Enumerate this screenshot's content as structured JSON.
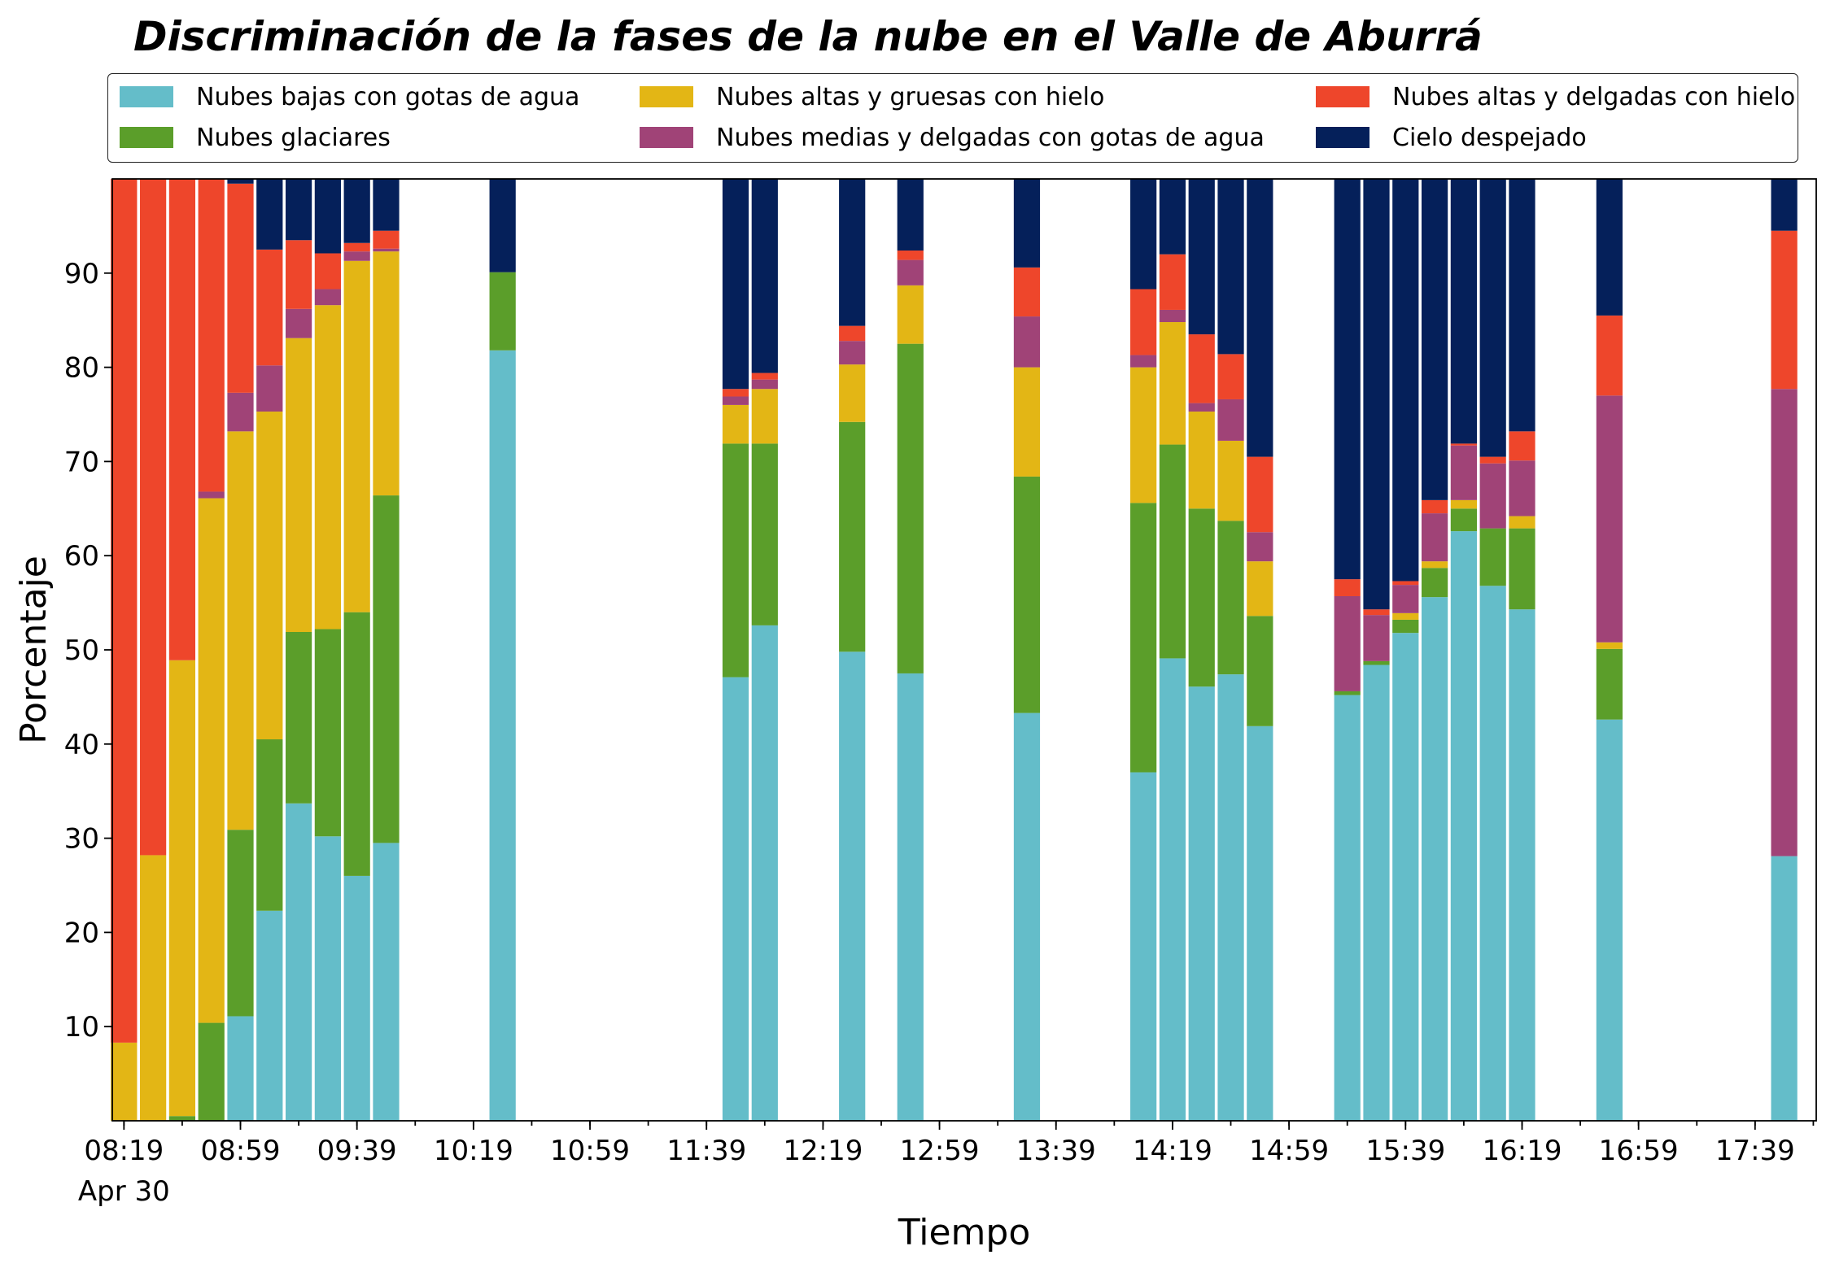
{
  "chart_data": {
    "type": "bar",
    "stacked": true,
    "title": "Discriminación de la fases de la nube en el Valle de Aburrá",
    "xlabel": "Tiempo",
    "ylabel": "Porcentaje",
    "ylim": [
      0,
      100
    ],
    "yticks": [
      10,
      20,
      30,
      40,
      50,
      60,
      70,
      80,
      90
    ],
    "xlim": [
      "08:15",
      "18:00"
    ],
    "x_major_ticks": [
      "08:19",
      "08:59",
      "09:39",
      "10:19",
      "10:59",
      "11:39",
      "12:19",
      "12:59",
      "13:39",
      "14:19",
      "14:59",
      "15:39",
      "16:19",
      "16:59",
      "17:39"
    ],
    "x_minor_tick_step_minutes": 20,
    "x_date_label": "Apr 30",
    "bar_width_minutes": 9,
    "grid": false,
    "legend": "top",
    "x": [
      "08:19",
      "08:29",
      "08:39",
      "08:49",
      "08:59",
      "09:09",
      "09:19",
      "09:29",
      "09:39",
      "09:49",
      "10:29",
      "11:49",
      "11:59",
      "12:29",
      "12:49",
      "13:29",
      "14:09",
      "14:19",
      "14:29",
      "14:39",
      "14:49",
      "15:19",
      "15:29",
      "15:39",
      "15:49",
      "15:59",
      "16:09",
      "16:19",
      "16:49",
      "17:49"
    ],
    "series": [
      {
        "name": "Nubes bajas con gotas de agua",
        "color": "#64bdc9",
        "values": [
          0,
          0,
          0,
          0,
          11.1,
          22.3,
          33.7,
          30.2,
          26.0,
          29.5,
          81.8,
          47.1,
          52.6,
          49.8,
          47.5,
          43.3,
          37.0,
          49.1,
          46.1,
          47.4,
          41.9,
          45.2,
          48.4,
          51.8,
          55.6,
          62.6,
          56.8,
          54.3,
          42.6,
          28.1
        ]
      },
      {
        "name": "Nubes glaciares",
        "color": "#5b9e2a",
        "values": [
          0,
          0,
          0.5,
          10.4,
          19.8,
          18.2,
          18.2,
          22.0,
          28.0,
          36.9,
          8.3,
          24.8,
          19.3,
          24.4,
          35.0,
          25.1,
          28.6,
          22.7,
          18.9,
          16.3,
          11.7,
          0.4,
          0.4,
          1.4,
          3.1,
          2.4,
          6.1,
          8.6,
          7.5,
          0
        ]
      },
      {
        "name": "Nubes altas y gruesas con hielo",
        "color": "#e3b615",
        "values": [
          8.3,
          28.2,
          48.4,
          55.7,
          42.3,
          34.8,
          31.2,
          34.4,
          37.3,
          25.9,
          0,
          4.1,
          5.8,
          6.1,
          6.2,
          11.6,
          14.4,
          13.0,
          10.3,
          8.5,
          5.8,
          0,
          0,
          0.7,
          0.7,
          0.9,
          0,
          1.3,
          0.7,
          0
        ]
      },
      {
        "name": "Nubes medias y delgadas con gotas de agua",
        "color": "#a04377",
        "values": [
          0,
          0,
          0,
          0.7,
          4.1,
          4.9,
          3.1,
          1.7,
          1.0,
          0.3,
          0,
          0.9,
          1.0,
          2.5,
          2.7,
          5.4,
          1.3,
          1.3,
          0.9,
          4.4,
          3.1,
          10.1,
          4.9,
          3.0,
          5.1,
          5.8,
          6.9,
          5.9,
          26.2,
          49.6
        ]
      },
      {
        "name": "Nubes altas y delgadas con hielo",
        "color": "#ee462b",
        "values": [
          91.7,
          71.8,
          51.1,
          33.2,
          22.2,
          12.3,
          7.3,
          3.8,
          0.9,
          1.9,
          0,
          0.8,
          0.7,
          1.6,
          1.0,
          5.2,
          7.0,
          5.9,
          7.3,
          4.8,
          8.0,
          1.8,
          0.6,
          0.4,
          1.4,
          0.2,
          0.7,
          3.1,
          8.5,
          16.8
        ]
      },
      {
        "name": "Cielo despejado",
        "color": "#05205a",
        "values": [
          0,
          0,
          0,
          0,
          0.5,
          7.5,
          6.5,
          7.9,
          6.8,
          5.5,
          9.9,
          22.3,
          20.6,
          15.6,
          7.6,
          9.4,
          11.7,
          8.0,
          16.5,
          18.6,
          29.5,
          42.5,
          45.7,
          42.7,
          34.1,
          28.1,
          29.5,
          26.8,
          14.5,
          5.5
        ]
      }
    ]
  }
}
